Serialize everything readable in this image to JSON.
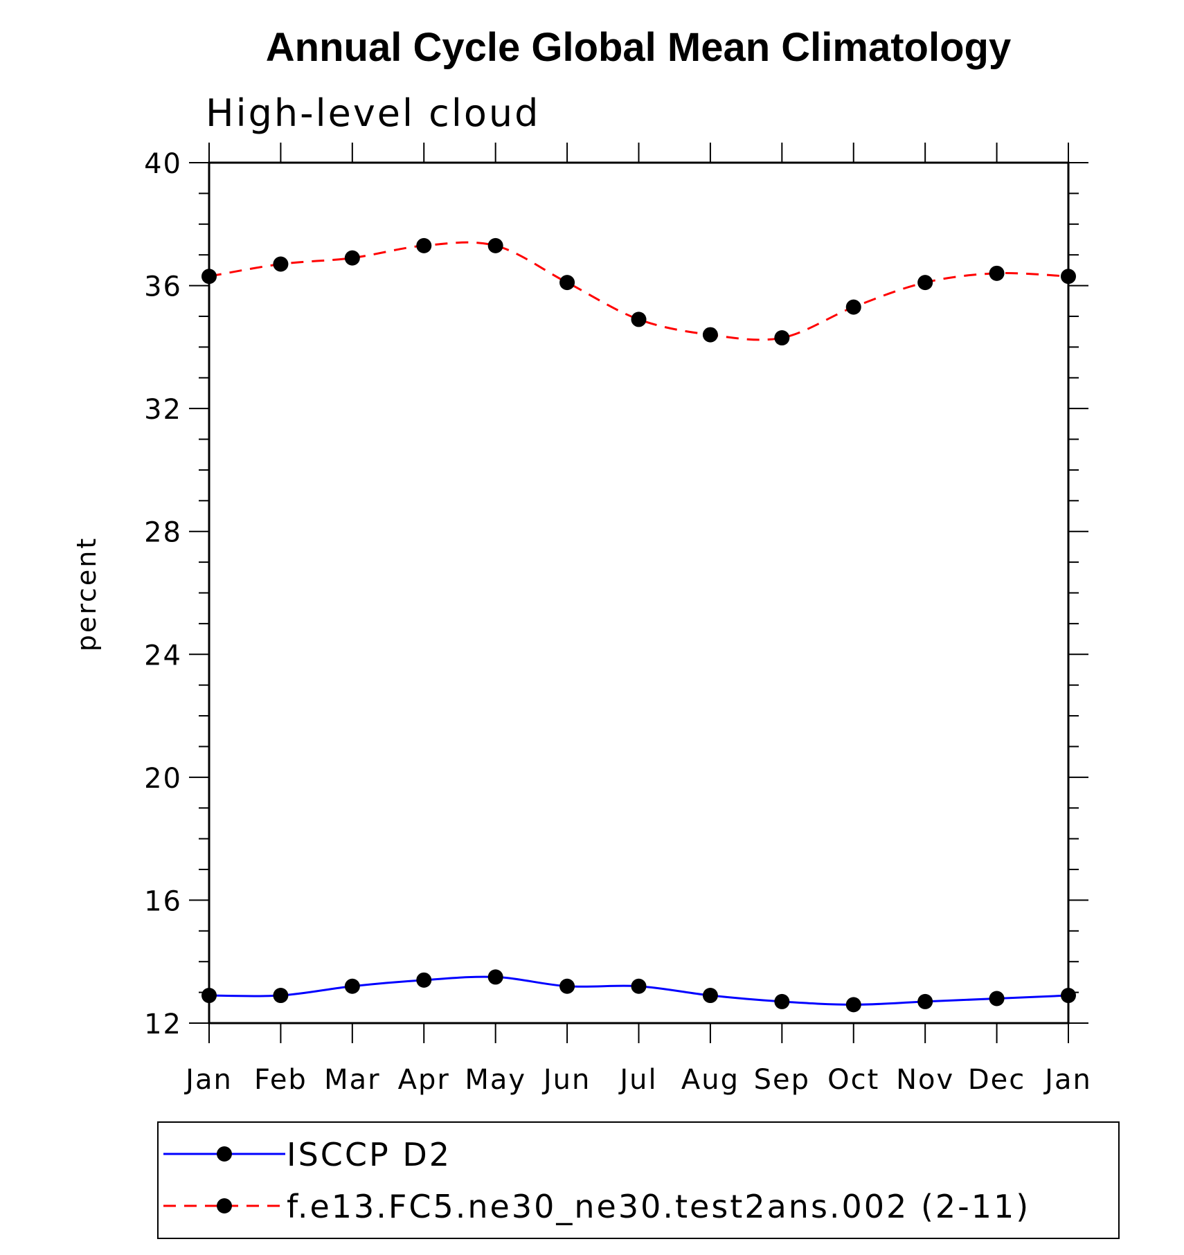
{
  "chart_data": {
    "type": "line",
    "title": "Annual Cycle Global Mean Climatology",
    "subtitle": "High-level cloud",
    "xlabel": "",
    "ylabel": "percent",
    "ylim": [
      12,
      40
    ],
    "y_ticks": [
      "12",
      "16",
      "20",
      "24",
      "28",
      "32",
      "36",
      "40"
    ],
    "categories": [
      "Jan",
      "Feb",
      "Mar",
      "Apr",
      "May",
      "Jun",
      "Jul",
      "Aug",
      "Sep",
      "Oct",
      "Nov",
      "Dec",
      "Jan"
    ],
    "series": [
      {
        "name": "ISCCP D2",
        "color": "#0000ff",
        "dash": "solid",
        "values": [
          12.9,
          12.9,
          13.2,
          13.4,
          13.5,
          13.2,
          13.2,
          12.9,
          12.7,
          12.6,
          12.7,
          12.8,
          12.9
        ]
      },
      {
        "name": "f.e13.FC5.ne30_ne30.test2ans.002 (2-11)",
        "color": "#ff0000",
        "dash": "dashed",
        "values": [
          36.3,
          36.7,
          36.9,
          37.3,
          37.3,
          36.1,
          34.9,
          34.4,
          34.3,
          35.3,
          36.1,
          36.4,
          36.3
        ]
      }
    ],
    "legend_position": "bottom",
    "grid": false
  }
}
